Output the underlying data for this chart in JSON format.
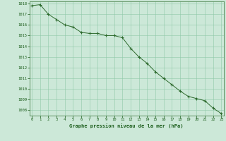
{
  "hours": [
    0,
    1,
    2,
    3,
    4,
    5,
    6,
    7,
    8,
    9,
    10,
    11,
    12,
    13,
    14,
    15,
    16,
    17,
    18,
    19,
    20,
    21,
    22,
    23
  ],
  "pressure": [
    1017.8,
    1017.9,
    1017.0,
    1016.5,
    1016.0,
    1015.8,
    1015.3,
    1015.2,
    1015.2,
    1015.0,
    1015.0,
    1014.8,
    1013.8,
    1013.0,
    1012.4,
    1011.6,
    1011.0,
    1010.4,
    1009.8,
    1009.3,
    1009.1,
    1008.9,
    1008.2,
    1007.7
  ],
  "ylim": [
    1007.5,
    1018.2
  ],
  "yticks": [
    1008,
    1009,
    1010,
    1011,
    1012,
    1013,
    1014,
    1015,
    1016,
    1017,
    1018
  ],
  "xticks": [
    0,
    1,
    2,
    3,
    4,
    5,
    6,
    7,
    8,
    9,
    10,
    11,
    12,
    13,
    14,
    15,
    16,
    17,
    18,
    19,
    20,
    21,
    22,
    23
  ],
  "line_color": "#2d6a2d",
  "marker_color": "#2d6a2d",
  "bg_color": "#cce8d8",
  "grid_color": "#8fc8a8",
  "title": "Graphe pression niveau de la mer (hPa)",
  "title_color": "#1a5c1a",
  "tick_color": "#1a5c1a",
  "border_color": "#2d6a2d",
  "figsize": [
    3.2,
    2.0
  ],
  "dpi": 100
}
